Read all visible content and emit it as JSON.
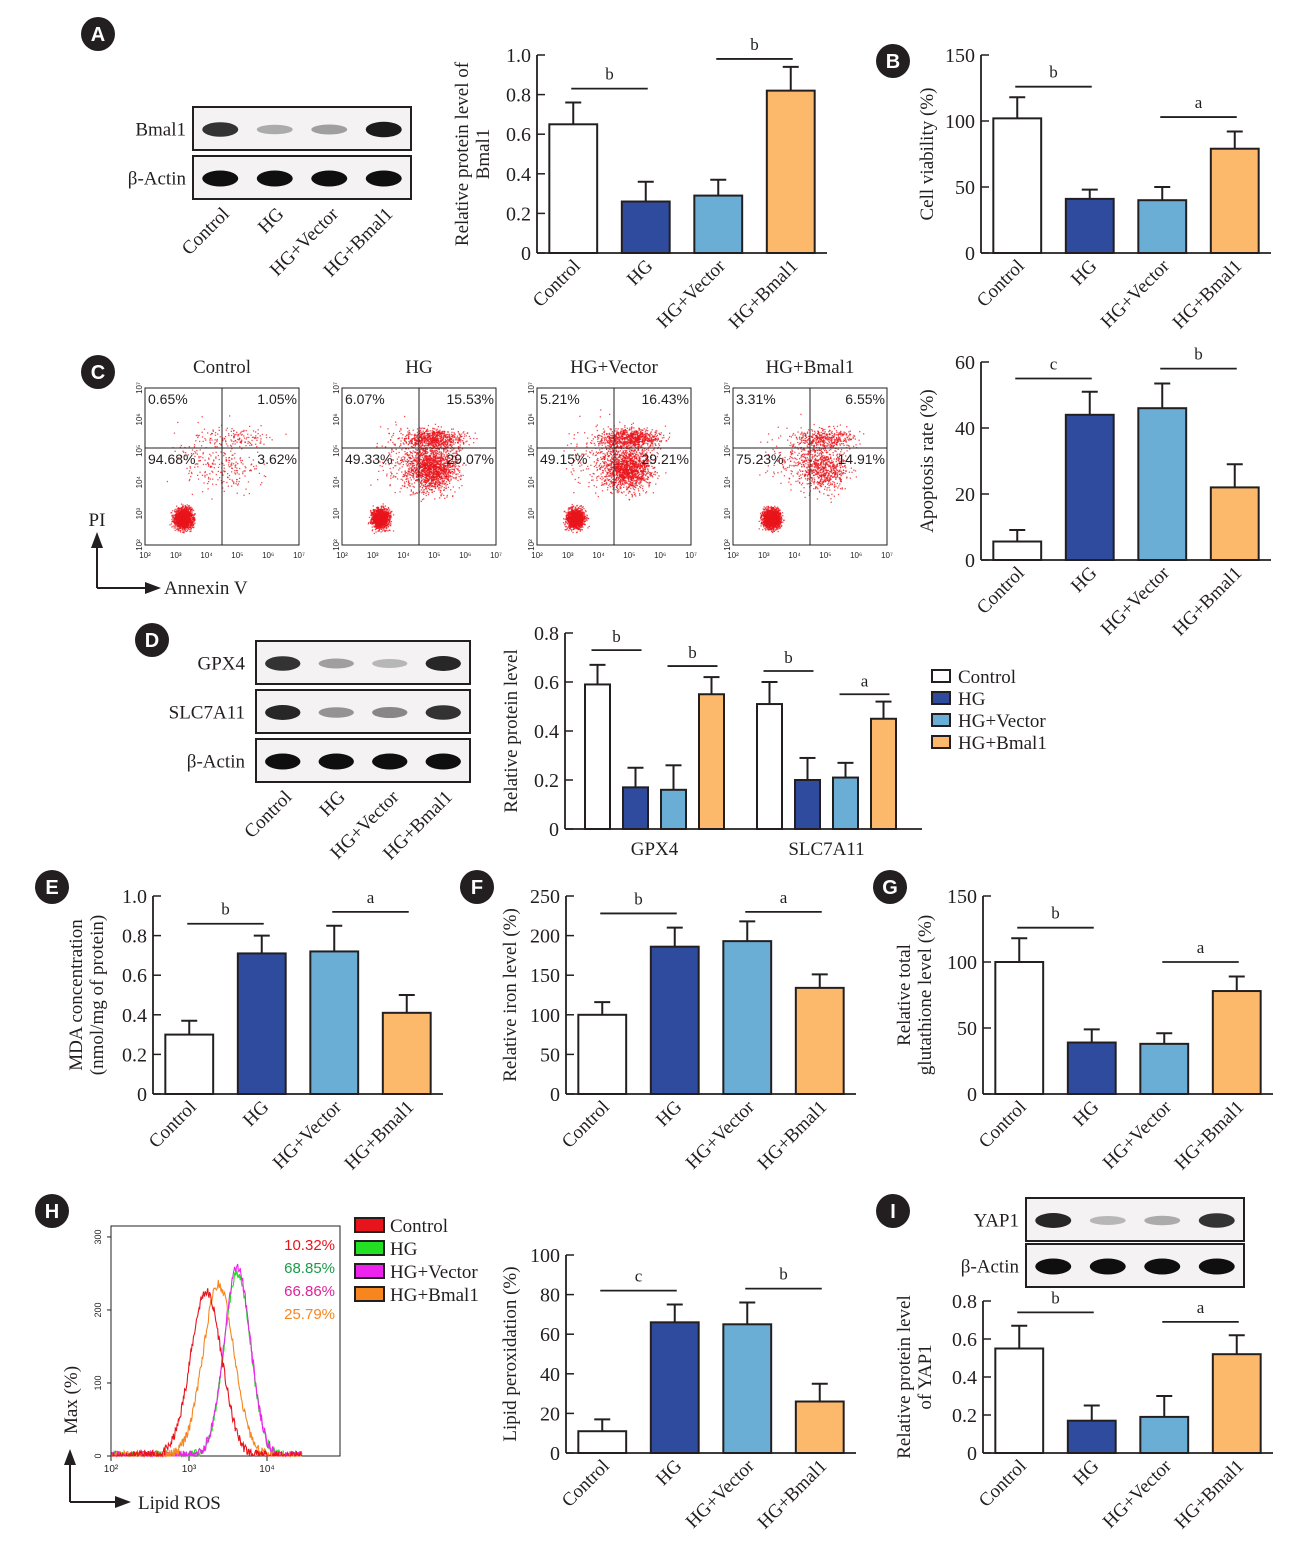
{
  "figure": {
    "groups": [
      "Control",
      "HG",
      "HG+Vector",
      "HG+Bmal1"
    ],
    "group_colors": [
      "#ffffff",
      "#2e4b9e",
      "#6aaed6",
      "#fdb96b"
    ],
    "panel_labels": [
      "A",
      "B",
      "C",
      "D",
      "E",
      "F",
      "G",
      "H",
      "I"
    ]
  },
  "blots": {
    "A": {
      "rows": [
        {
          "label": "Bmal1",
          "intensities": [
            0.85,
            0.35,
            0.4,
            0.95
          ]
        },
        {
          "label": "β-Actin",
          "intensities": [
            1,
            1,
            1,
            1
          ]
        }
      ],
      "lanes": [
        "Control",
        "HG",
        "HG+Vector",
        "HG+Bmal1"
      ]
    },
    "D": {
      "rows": [
        {
          "label": "GPX4",
          "intensities": [
            0.85,
            0.4,
            0.3,
            0.9
          ]
        },
        {
          "label": "SLC7A11",
          "intensities": [
            0.9,
            0.45,
            0.5,
            0.85
          ]
        },
        {
          "label": "β-Actin",
          "intensities": [
            1,
            1,
            1,
            1
          ]
        }
      ],
      "lanes": [
        "Control",
        "HG",
        "HG+Vector",
        "HG+Bmal1"
      ]
    },
    "I": {
      "rows": [
        {
          "label": "YAP1",
          "intensities": [
            0.9,
            0.3,
            0.35,
            0.85
          ]
        },
        {
          "label": "β-Actin",
          "intensities": [
            1,
            1,
            1,
            1
          ]
        }
      ]
    }
  },
  "flow": {
    "C": {
      "x_axis_label": "Annexin V",
      "y_axis_label": "PI",
      "tick_labels": [
        "10²",
        "10³",
        "10⁴",
        "10⁵",
        "10⁶",
        "10⁷"
      ],
      "plots": [
        {
          "title": "Control",
          "quadrants": [
            "0.65%",
            "1.05%",
            "94.68%",
            "3.62%"
          ]
        },
        {
          "title": "HG",
          "quadrants": [
            "6.07%",
            "15.53%",
            "49.33%",
            "29.07%"
          ]
        },
        {
          "title": "HG+Vector",
          "quadrants": [
            "5.21%",
            "16.43%",
            "49.15%",
            "29.21%"
          ]
        },
        {
          "title": "HG+Bmal1",
          "quadrants": [
            "3.31%",
            "6.55%",
            "75.23%",
            "14.91%"
          ]
        }
      ]
    },
    "H": {
      "x_axis_label": "Lipid ROS",
      "y_axis_label": "Max (%)",
      "x_ticks": [
        "10²",
        "10³",
        "10⁴"
      ],
      "y_ticks": [
        "0",
        "100",
        "200",
        "300"
      ],
      "legend": [
        "Control",
        "HG",
        "HG+Vector",
        "HG+Bmal1"
      ],
      "colors": [
        "#e8141c",
        "#22e022",
        "#ee22ee",
        "#f7861f"
      ],
      "percent_colors": [
        "#e8141c",
        "#1c9a48",
        "#e0229a",
        "#f7861f"
      ],
      "percentages": [
        "10.32%",
        "68.85%",
        "66.86%",
        "25.79%"
      ]
    }
  },
  "chart_data": [
    {
      "id": "A",
      "type": "bar",
      "title": "",
      "categories": [
        "Control",
        "HG",
        "HG+Vector",
        "HG+Bmal1"
      ],
      "values": [
        0.65,
        0.26,
        0.29,
        0.82
      ],
      "errors": [
        0.11,
        0.1,
        0.08,
        0.12
      ],
      "ylabel": [
        "Relative protein level of",
        "Bmal1"
      ],
      "ylim": [
        0,
        1.0
      ],
      "yticks": [
        "0",
        "0.2",
        "0.4",
        "0.6",
        "0.8",
        "1.0"
      ],
      "ytick_values": [
        0,
        0.2,
        0.4,
        0.6,
        0.8,
        1.0
      ],
      "significance": [
        {
          "from": 0,
          "to": 1,
          "label": "b",
          "y": 0.83
        },
        {
          "from": 2,
          "to": 3,
          "label": "b",
          "y": 0.98
        }
      ]
    },
    {
      "id": "B",
      "type": "bar",
      "categories": [
        "Control",
        "HG",
        "HG+Vector",
        "HG+Bmal1"
      ],
      "values": [
        102,
        41,
        40,
        79
      ],
      "errors": [
        16,
        7,
        10,
        13
      ],
      "ylabel": [
        "Cell viability (%)"
      ],
      "ylim": [
        0,
        150
      ],
      "yticks": [
        "0",
        "50",
        "100",
        "150"
      ],
      "ytick_values": [
        0,
        50,
        100,
        150
      ],
      "significance": [
        {
          "from": 0,
          "to": 1,
          "label": "b",
          "y": 126
        },
        {
          "from": 2,
          "to": 3,
          "label": "a",
          "y": 103
        }
      ]
    },
    {
      "id": "C",
      "type": "bar",
      "categories": [
        "Control",
        "HG",
        "HG+Vector",
        "HG+Bmal1"
      ],
      "values": [
        5.6,
        44,
        46,
        22
      ],
      "errors": [
        3.5,
        7,
        7.5,
        7
      ],
      "ylabel": [
        "Apoptosis rate (%)"
      ],
      "ylim": [
        0,
        60
      ],
      "yticks": [
        "0",
        "20",
        "40",
        "60"
      ],
      "ytick_values": [
        0,
        20,
        40,
        60
      ],
      "significance": [
        {
          "from": 0,
          "to": 1,
          "label": "c",
          "y": 55
        },
        {
          "from": 2,
          "to": 3,
          "label": "b",
          "y": 58
        }
      ]
    },
    {
      "id": "D",
      "type": "bar",
      "grouped": true,
      "categories": [
        "GPX4",
        "SLC7A11"
      ],
      "series": [
        {
          "name": "Control",
          "values": [
            0.59,
            0.51
          ],
          "errors": [
            0.08,
            0.09
          ]
        },
        {
          "name": "HG",
          "values": [
            0.17,
            0.2
          ],
          "errors": [
            0.08,
            0.09
          ]
        },
        {
          "name": "HG+Vector",
          "values": [
            0.16,
            0.21
          ],
          "errors": [
            0.1,
            0.06
          ]
        },
        {
          "name": "HG+Bmal1",
          "values": [
            0.55,
            0.45
          ],
          "errors": [
            0.07,
            0.07
          ]
        }
      ],
      "ylabel": [
        "Relative protein level"
      ],
      "ylim": [
        0,
        0.8
      ],
      "yticks": [
        "0",
        "0.2",
        "0.4",
        "0.6",
        "0.8"
      ],
      "ytick_values": [
        0,
        0.2,
        0.4,
        0.6,
        0.8
      ],
      "legend": "right",
      "significance": [
        {
          "cat": 0,
          "from": 0,
          "to": 1,
          "label": "b",
          "y": 0.73
        },
        {
          "cat": 0,
          "from": 2,
          "to": 3,
          "label": "b",
          "y": 0.665
        },
        {
          "cat": 1,
          "from": 0,
          "to": 1,
          "label": "b",
          "y": 0.645
        },
        {
          "cat": 1,
          "from": 2,
          "to": 3,
          "label": "a",
          "y": 0.55
        }
      ]
    },
    {
      "id": "E",
      "type": "bar",
      "categories": [
        "Control",
        "HG",
        "HG+Vector",
        "HG+Bmal1"
      ],
      "values": [
        0.3,
        0.71,
        0.72,
        0.41
      ],
      "errors": [
        0.07,
        0.09,
        0.13,
        0.09
      ],
      "ylabel": [
        "MDA concentration",
        "(nmol/mg of protein)"
      ],
      "ylim": [
        0,
        1.0
      ],
      "yticks": [
        "0",
        "0.2",
        "0.4",
        "0.6",
        "0.8",
        "1.0"
      ],
      "ytick_values": [
        0,
        0.2,
        0.4,
        0.6,
        0.8,
        1.0
      ],
      "significance": [
        {
          "from": 0,
          "to": 1,
          "label": "b",
          "y": 0.86
        },
        {
          "from": 2,
          "to": 3,
          "label": "a",
          "y": 0.92
        }
      ]
    },
    {
      "id": "F",
      "type": "bar",
      "categories": [
        "Control",
        "HG",
        "HG+Vector",
        "HG+Bmal1"
      ],
      "values": [
        100,
        186,
        193,
        134
      ],
      "errors": [
        16,
        24,
        25,
        17
      ],
      "ylabel": [
        "Relative iron level (%)"
      ],
      "ylim": [
        0,
        250
      ],
      "yticks": [
        "0",
        "50",
        "100",
        "150",
        "200",
        "250"
      ],
      "ytick_values": [
        0,
        50,
        100,
        150,
        200,
        250
      ],
      "significance": [
        {
          "from": 0,
          "to": 1,
          "label": "b",
          "y": 228
        },
        {
          "from": 2,
          "to": 3,
          "label": "a",
          "y": 230
        }
      ]
    },
    {
      "id": "G",
      "type": "bar",
      "categories": [
        "Control",
        "HG",
        "HG+Vector",
        "HG+Bmal1"
      ],
      "values": [
        100,
        39,
        38,
        78
      ],
      "errors": [
        18,
        10,
        8,
        11
      ],
      "ylabel": [
        "Relative total",
        "glutathione level (%)"
      ],
      "ylim": [
        0,
        150
      ],
      "yticks": [
        "0",
        "50",
        "100",
        "150"
      ],
      "ytick_values": [
        0,
        50,
        100,
        150
      ],
      "significance": [
        {
          "from": 0,
          "to": 1,
          "label": "b",
          "y": 126
        },
        {
          "from": 2,
          "to": 3,
          "label": "a",
          "y": 100
        }
      ]
    },
    {
      "id": "H",
      "type": "bar",
      "categories": [
        "Control",
        "HG",
        "HG+Vector",
        "HG+Bmal1"
      ],
      "values": [
        11,
        66,
        65,
        26
      ],
      "errors": [
        6,
        9,
        11,
        9
      ],
      "ylabel": [
        "Lipid peroxidation (%)"
      ],
      "ylim": [
        0,
        100
      ],
      "yticks": [
        "0",
        "20",
        "40",
        "60",
        "80",
        "100"
      ],
      "ytick_values": [
        0,
        20,
        40,
        60,
        80,
        100
      ],
      "significance": [
        {
          "from": 0,
          "to": 1,
          "label": "c",
          "y": 82
        },
        {
          "from": 2,
          "to": 3,
          "label": "b",
          "y": 83
        }
      ]
    },
    {
      "id": "I",
      "type": "bar",
      "categories": [
        "Control",
        "HG",
        "HG+Vector",
        "HG+Bmal1"
      ],
      "values": [
        0.55,
        0.17,
        0.19,
        0.52
      ],
      "errors": [
        0.12,
        0.08,
        0.11,
        0.1
      ],
      "ylabel": [
        "Relative protein level",
        "of YAP1"
      ],
      "ylim": [
        0,
        0.8
      ],
      "yticks": [
        "0",
        "0.2",
        "0.4",
        "0.6",
        "0.8"
      ],
      "ytick_values": [
        0,
        0.2,
        0.4,
        0.6,
        0.8
      ],
      "significance": [
        {
          "from": 0,
          "to": 1,
          "label": "b",
          "y": 0.74
        },
        {
          "from": 2,
          "to": 3,
          "label": "a",
          "y": 0.69
        }
      ]
    }
  ]
}
